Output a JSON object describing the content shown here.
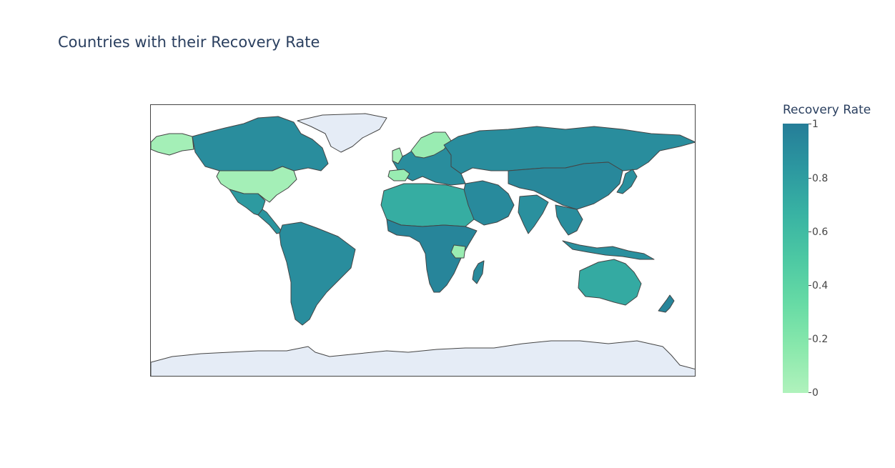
{
  "title": "Countries with their Recovery Rate",
  "colorbar": {
    "title": "Recovery Rate",
    "ticks": [
      "0",
      "0.2",
      "0.4",
      "0.6",
      "0.8",
      "1"
    ],
    "range": [
      0,
      1
    ],
    "colorscale": [
      "#b0f2bc",
      "#89e8ac",
      "#67dba5",
      "#4cc8a3",
      "#38b2a3",
      "#2c98a0",
      "#257d98"
    ]
  },
  "map": {
    "projection": "equirectangular",
    "no_data_color": "#e5ecf6",
    "border_color": "#444444",
    "regions": [
      {
        "name": "Canada",
        "value": 0.9
      },
      {
        "name": "United States",
        "value": 0.05
      },
      {
        "name": "Alaska",
        "value": 0.05
      },
      {
        "name": "Greenland",
        "value": null
      },
      {
        "name": "Mexico",
        "value": 0.82
      },
      {
        "name": "Central America",
        "value": 0.85
      },
      {
        "name": "South America",
        "value": 0.9
      },
      {
        "name": "Europe",
        "value": 0.9
      },
      {
        "name": "United Kingdom",
        "value": 0.05
      },
      {
        "name": "Spain",
        "value": 0.1
      },
      {
        "name": "Sweden",
        "value": 0.1
      },
      {
        "name": "Russia",
        "value": 0.9
      },
      {
        "name": "Middle East",
        "value": 0.92
      },
      {
        "name": "China",
        "value": 0.93
      },
      {
        "name": "India",
        "value": 0.88
      },
      {
        "name": "Southeast Asia",
        "value": 0.9
      },
      {
        "name": "North Africa",
        "value": 0.7
      },
      {
        "name": "Sub-Saharan Africa",
        "value": 0.95
      },
      {
        "name": "Tanzania",
        "value": 0.1
      },
      {
        "name": "Madagascar",
        "value": 0.92
      },
      {
        "name": "Australia",
        "value": 0.72
      },
      {
        "name": "New Zealand",
        "value": 0.95
      },
      {
        "name": "Japan",
        "value": 0.88
      },
      {
        "name": "Indonesia",
        "value": 0.88
      },
      {
        "name": "Antarctica",
        "value": null
      }
    ]
  }
}
